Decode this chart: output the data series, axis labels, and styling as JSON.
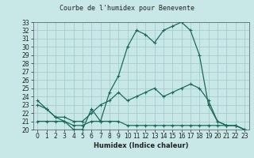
{
  "title": "Courbe de l'humidex pour Benevente",
  "xlabel": "Humidex (Indice chaleur)",
  "bg_color": "#c8e8e8",
  "line_color": "#1a6b5a",
  "grid_color": "#a0c8c8",
  "xlim": [
    -0.5,
    23.5
  ],
  "ylim": [
    20,
    33
  ],
  "xticks": [
    0,
    1,
    2,
    3,
    4,
    5,
    6,
    7,
    8,
    9,
    10,
    11,
    12,
    13,
    14,
    15,
    16,
    17,
    18,
    19,
    20,
    21,
    22,
    23
  ],
  "yticks": [
    20,
    21,
    22,
    23,
    24,
    25,
    26,
    27,
    28,
    29,
    30,
    31,
    32,
    33
  ],
  "line1_x": [
    0,
    1,
    2,
    3,
    4,
    5,
    6,
    7,
    8,
    9,
    10,
    11,
    12,
    13,
    14,
    15,
    16,
    17,
    18,
    19,
    20,
    21,
    22,
    23
  ],
  "line1_y": [
    23.5,
    22.5,
    21.5,
    21.0,
    20.0,
    20.0,
    22.5,
    21.0,
    24.5,
    26.5,
    30.0,
    32.0,
    31.5,
    30.5,
    32.0,
    32.5,
    33.0,
    32.0,
    29.0,
    23.0,
    21.0,
    20.5,
    20.5,
    20.0
  ],
  "line2_x": [
    0,
    1,
    2,
    3,
    4,
    5,
    6,
    7,
    8,
    9,
    10,
    11,
    12,
    13,
    14,
    15,
    16,
    17,
    18,
    19,
    20,
    21,
    22,
    23
  ],
  "line2_y": [
    23.0,
    22.5,
    21.5,
    21.5,
    21.0,
    21.0,
    22.0,
    23.0,
    23.5,
    24.5,
    23.5,
    24.0,
    24.5,
    25.0,
    24.0,
    24.5,
    25.0,
    25.5,
    25.0,
    23.5,
    21.0,
    20.5,
    20.5,
    20.0
  ],
  "line3_x": [
    0,
    1,
    2,
    3,
    4,
    5,
    6,
    7,
    8,
    9,
    10,
    11,
    12,
    13,
    14,
    15,
    16,
    17,
    18,
    19,
    20,
    21,
    22,
    23
  ],
  "line3_y": [
    21.0,
    21.0,
    21.0,
    21.0,
    20.5,
    20.5,
    21.0,
    21.0,
    21.0,
    21.0,
    20.5,
    20.5,
    20.5,
    20.5,
    20.5,
    20.5,
    20.5,
    20.5,
    20.5,
    20.5,
    20.5,
    20.5,
    20.5,
    20.0
  ],
  "title_fontsize": 6,
  "label_fontsize": 6,
  "tick_fontsize": 5.5,
  "linewidth": 0.9,
  "marker_size": 3
}
